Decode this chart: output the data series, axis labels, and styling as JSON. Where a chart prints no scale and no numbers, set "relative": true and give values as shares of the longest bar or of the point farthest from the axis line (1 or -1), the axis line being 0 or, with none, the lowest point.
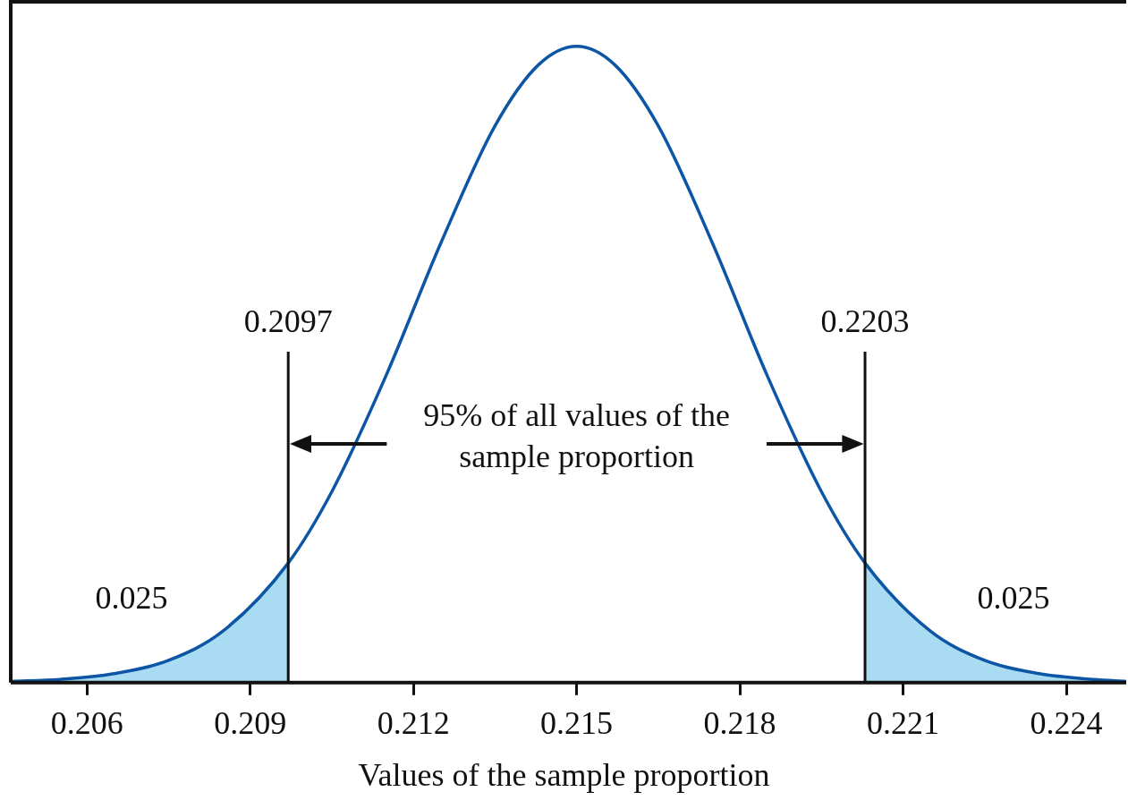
{
  "chart_data": {
    "type": "line",
    "relative": true,
    "xlabel": "Values of the sample proportion",
    "xlim": [
      0.2046,
      0.2251
    ],
    "xticks": [
      0.206,
      0.209,
      0.212,
      0.215,
      0.218,
      0.221,
      0.224
    ],
    "grid": false,
    "legend": false,
    "marker": "none",
    "line_style": "solid",
    "series": [
      {
        "color": "#0d56a6",
        "x": [
          0.2046,
          0.2055,
          0.2065,
          0.2075,
          0.2085,
          0.2097,
          0.2105,
          0.2115,
          0.2125,
          0.2135,
          0.2143,
          0.215,
          0.2157,
          0.2165,
          0.2175,
          0.2185,
          0.2195,
          0.2203,
          0.2215,
          0.2225,
          0.2235,
          0.2245,
          0.2251
        ],
        "values": [
          0.002,
          0.005,
          0.014,
          0.035,
          0.081,
          0.188,
          0.3,
          0.483,
          0.69,
          0.875,
          0.971,
          1,
          0.971,
          0.875,
          0.69,
          0.483,
          0.3,
          0.188,
          0.081,
          0.035,
          0.014,
          0.005,
          0.002
        ]
      },
      {
        "type": "area",
        "color": "#a9dcf2",
        "x": [
          0.2046,
          0.2055,
          0.2065,
          0.2075,
          0.2085,
          0.2097
        ],
        "values": [
          0.002,
          0.005,
          0.014,
          0.035,
          0.081,
          0.188
        ]
      },
      {
        "type": "area",
        "color": "#a9dcf2",
        "x": [
          0.2203,
          0.2215,
          0.2225,
          0.2235,
          0.2245,
          0.2251
        ],
        "values": [
          0.188,
          0.081,
          0.035,
          0.014,
          0.005,
          0.002
        ]
      }
    ],
    "ref_lines": [
      {
        "axis": "x",
        "value": 0.2097,
        "label": "0.2097",
        "color": "#111111"
      },
      {
        "axis": "x",
        "value": 0.2203,
        "label": "0.2203",
        "color": "#111111"
      }
    ],
    "annotations": [
      "0.025",
      "95% of all values of the sample proportion",
      "0.025"
    ]
  }
}
